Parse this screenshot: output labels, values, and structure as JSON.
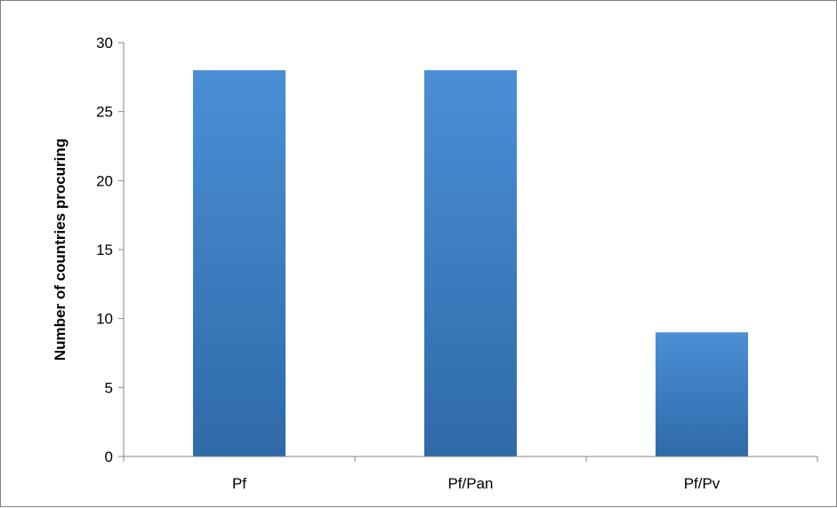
{
  "chart_data": {
    "type": "bar",
    "categories": [
      "Pf",
      "Pf/Pan",
      "Pf/Pv"
    ],
    "values": [
      28,
      28,
      9
    ],
    "title": "",
    "xlabel": "",
    "ylabel": "Number of countries procuring",
    "ylim": [
      0,
      30
    ],
    "yticks": [
      0,
      5,
      10,
      15,
      20,
      25,
      30
    ],
    "grid": false,
    "legend": "none",
    "bar_color_top": "#4a8fd6",
    "bar_color_bottom": "#2f6aa8"
  }
}
